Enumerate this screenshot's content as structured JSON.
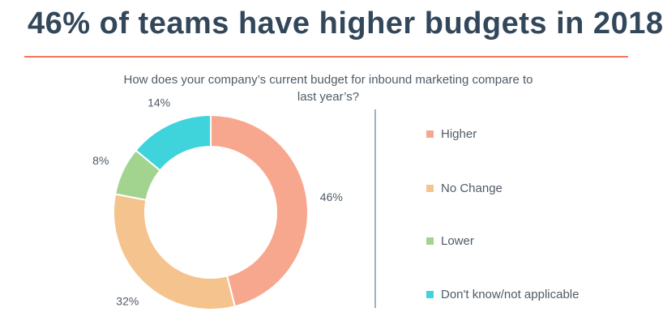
{
  "headline": "46% of teams have higher budgets in 2018",
  "question": {
    "line1": "How does your company’s current budget for inbound marketing compare to",
    "line2": "last year’s?"
  },
  "colors": {
    "headline": "#33475b",
    "rule": "#f2765a",
    "divider": "#9fb0c2"
  },
  "chart_data": {
    "type": "pie",
    "donut": true,
    "title": "How does your company’s current budget for inbound marketing compare to last year’s?",
    "series": [
      {
        "name": "Higher",
        "value": 46,
        "label": "46%",
        "color": "#f8a78f"
      },
      {
        "name": "No Change",
        "value": 32,
        "label": "32%",
        "color": "#f5c48e"
      },
      {
        "name": "Lower",
        "value": 8,
        "label": "8%",
        "color": "#a3d48f"
      },
      {
        "name": "Don't know/not applicable",
        "value": 14,
        "label": "14%",
        "color": "#3fd3db"
      }
    ],
    "legend_position": "right"
  }
}
